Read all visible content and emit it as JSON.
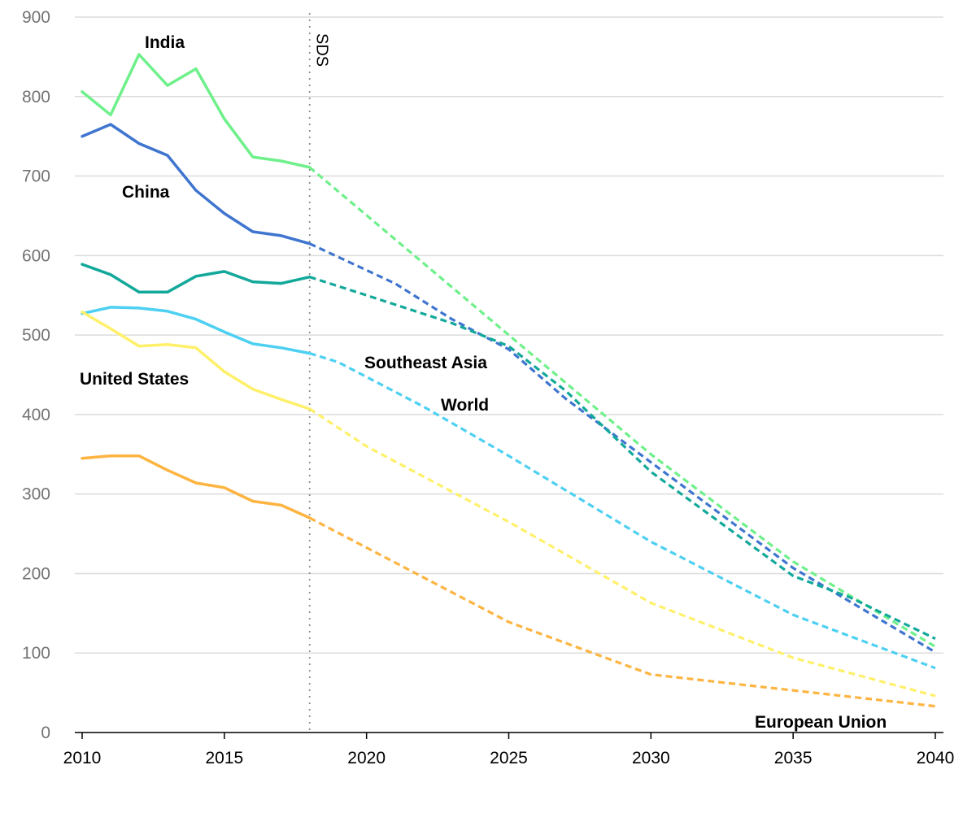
{
  "chart_data": {
    "type": "line",
    "title": "",
    "xlabel": "",
    "ylabel": "",
    "xlim": [
      2010,
      2040
    ],
    "ylim": [
      0,
      900
    ],
    "x_ticks": [
      2010,
      2015,
      2020,
      2025,
      2030,
      2035,
      2040
    ],
    "y_ticks": [
      0,
      100,
      200,
      300,
      400,
      500,
      600,
      700,
      800,
      900
    ],
    "grid": true,
    "legend": "none (series labelled directly on chart)",
    "projection_start": 2018,
    "vertical_marker": {
      "x": 2018,
      "label": "SDS",
      "style": "dotted"
    },
    "historical_style": "solid",
    "projection_style": "dashed",
    "series": [
      {
        "name": "India",
        "color": "#6ef08a",
        "historical": [
          [
            2010,
            806
          ],
          [
            2011,
            777
          ],
          [
            2012,
            853
          ],
          [
            2013,
            814
          ],
          [
            2014,
            835
          ],
          [
            2015,
            772
          ],
          [
            2016,
            724
          ],
          [
            2017,
            719
          ],
          [
            2018,
            711
          ]
        ],
        "projection": [
          [
            2018,
            711
          ],
          [
            2025,
            500
          ],
          [
            2030,
            350
          ],
          [
            2035,
            215
          ],
          [
            2040,
            108
          ]
        ]
      },
      {
        "name": "China",
        "color": "#3f75cf",
        "historical": [
          [
            2010,
            750
          ],
          [
            2011,
            765
          ],
          [
            2012,
            741
          ],
          [
            2013,
            726
          ],
          [
            2014,
            682
          ],
          [
            2015,
            653
          ],
          [
            2016,
            630
          ],
          [
            2017,
            625
          ],
          [
            2018,
            615
          ]
        ],
        "projection": [
          [
            2018,
            615
          ],
          [
            2021,
            565
          ],
          [
            2023,
            520
          ],
          [
            2025,
            482
          ],
          [
            2027,
            420
          ],
          [
            2030,
            340
          ],
          [
            2035,
            207
          ],
          [
            2040,
            101
          ]
        ]
      },
      {
        "name": "Southeast Asia",
        "color": "#12a89a",
        "historical": [
          [
            2010,
            589
          ],
          [
            2011,
            576
          ],
          [
            2012,
            554
          ],
          [
            2013,
            554
          ],
          [
            2014,
            574
          ],
          [
            2015,
            580
          ],
          [
            2016,
            567
          ],
          [
            2017,
            565
          ],
          [
            2018,
            573
          ]
        ],
        "projection": [
          [
            2018,
            573
          ],
          [
            2020,
            550
          ],
          [
            2023,
            515
          ],
          [
            2025,
            486
          ],
          [
            2027,
            430
          ],
          [
            2030,
            328
          ],
          [
            2035,
            197
          ],
          [
            2037,
            170
          ],
          [
            2040,
            118
          ]
        ]
      },
      {
        "name": "World",
        "color": "#4dd0f2",
        "historical": [
          [
            2010,
            527
          ],
          [
            2011,
            535
          ],
          [
            2012,
            534
          ],
          [
            2013,
            530
          ],
          [
            2014,
            520
          ],
          [
            2015,
            504
          ],
          [
            2016,
            489
          ],
          [
            2017,
            484
          ],
          [
            2018,
            477
          ]
        ],
        "projection": [
          [
            2018,
            477
          ],
          [
            2019,
            466
          ],
          [
            2022,
            410
          ],
          [
            2025,
            348
          ],
          [
            2030,
            240
          ],
          [
            2035,
            148
          ],
          [
            2040,
            81
          ]
        ]
      },
      {
        "name": "United States",
        "color": "#fff06a",
        "historical": [
          [
            2010,
            529
          ],
          [
            2011,
            508
          ],
          [
            2012,
            486
          ],
          [
            2013,
            488
          ],
          [
            2014,
            484
          ],
          [
            2015,
            454
          ],
          [
            2016,
            432
          ],
          [
            2017,
            419
          ],
          [
            2018,
            407
          ]
        ],
        "projection": [
          [
            2018,
            407
          ],
          [
            2020,
            360
          ],
          [
            2025,
            265
          ],
          [
            2030,
            163
          ],
          [
            2035,
            94
          ],
          [
            2040,
            46
          ]
        ]
      },
      {
        "name": "European Union",
        "color": "#fdb441",
        "historical": [
          [
            2010,
            345
          ],
          [
            2011,
            348
          ],
          [
            2012,
            348
          ],
          [
            2013,
            330
          ],
          [
            2014,
            314
          ],
          [
            2015,
            308
          ],
          [
            2016,
            291
          ],
          [
            2017,
            286
          ],
          [
            2018,
            270
          ]
        ],
        "projection": [
          [
            2018,
            270
          ],
          [
            2025,
            139
          ],
          [
            2030,
            73
          ],
          [
            2035,
            53
          ],
          [
            2040,
            33
          ]
        ]
      }
    ]
  }
}
